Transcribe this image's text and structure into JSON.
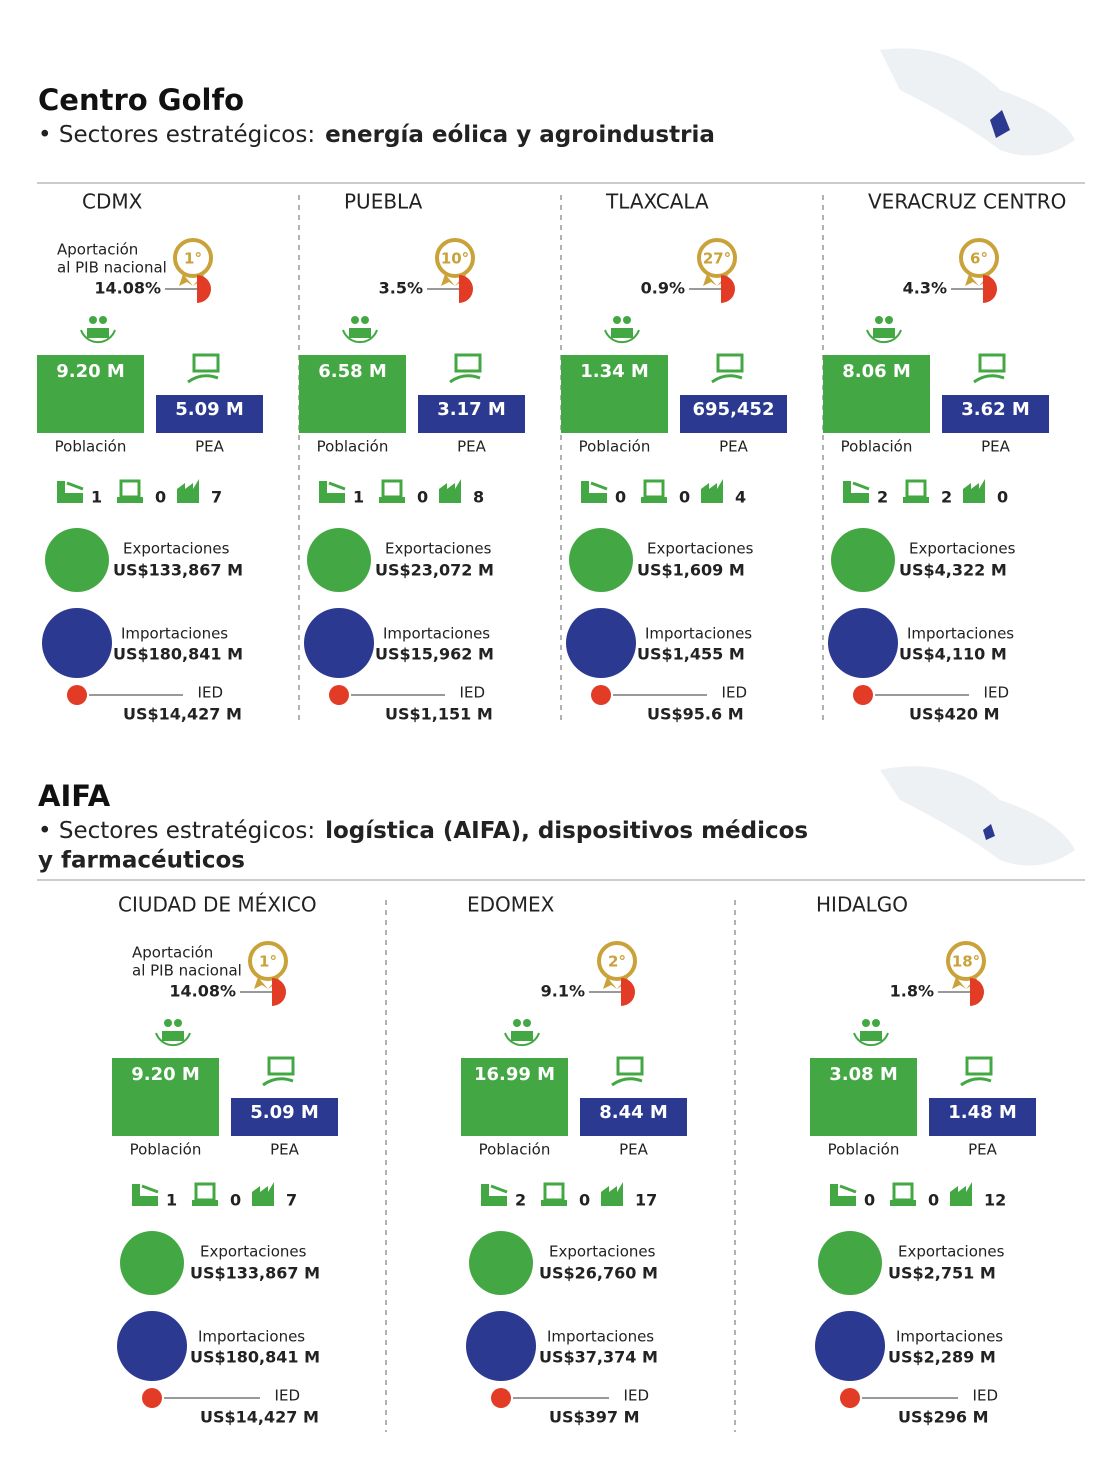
{
  "labels": {
    "pib": [
      "Aportación",
      "al PIB nacional"
    ],
    "poblacion": "Población",
    "pea": "PEA",
    "exportaciones": "Exportaciones",
    "importaciones": "Importaciones",
    "ied": "IED"
  },
  "sections": [
    {
      "title": "Centro Golfo",
      "subtitle_prefix": "• Sectores estratégicos:",
      "subtitle_bold": [
        "energía eólica y agroindustria"
      ],
      "states": [
        {
          "name": "CDMX",
          "rank": "1°",
          "pib": "14.08%",
          "poblacion": "9.20 M",
          "pea": "5.09 M",
          "icons": [
            "1",
            "0",
            "7"
          ],
          "exports": "US$133,867 M",
          "imports": "US$180,841 M",
          "ied": "US$14,427 M"
        },
        {
          "name": "PUEBLA",
          "rank": "10°",
          "pib": "3.5%",
          "poblacion": "6.58 M",
          "pea": "3.17 M",
          "icons": [
            "1",
            "0",
            "8"
          ],
          "exports": "US$23,072 M",
          "imports": "US$15,962 M",
          "ied": "US$1,151 M"
        },
        {
          "name": "TLAXCALA",
          "rank": "27°",
          "pib": "0.9%",
          "poblacion": "1.34 M",
          "pea": "695,452",
          "icons": [
            "0",
            "0",
            "4"
          ],
          "exports": "US$1,609 M",
          "imports": "US$1,455 M",
          "ied": "US$95.6 M"
        },
        {
          "name": "VERACRUZ CENTRO",
          "rank": "6°",
          "pib": "4.3%",
          "poblacion": "8.06 M",
          "pea": "3.62 M",
          "icons": [
            "2",
            "2",
            "0"
          ],
          "exports": "US$4,322 M",
          "imports": "US$4,110 M",
          "ied": "US$420 M"
        }
      ]
    },
    {
      "title": "AIFA",
      "subtitle_prefix": "• Sectores estratégicos:",
      "subtitle_bold": [
        "logística (AIFA), dispositivos médicos",
        "y farmacéuticos"
      ],
      "states": [
        {
          "name": "CIUDAD DE MÉXICO",
          "rank": "1°",
          "pib": "14.08%",
          "poblacion": "9.20 M",
          "pea": "5.09 M",
          "icons": [
            "1",
            "0",
            "7"
          ],
          "exports": "US$133,867 M",
          "imports": "US$180,841 M",
          "ied": "US$14,427 M"
        },
        {
          "name": "EDOMEX",
          "rank": "2°",
          "pib": "9.1%",
          "poblacion": "16.99 M",
          "pea": "8.44 M",
          "icons": [
            "2",
            "0",
            "17"
          ],
          "exports": "US$26,760 M",
          "imports": "US$37,374 M",
          "ied": "US$397 M"
        },
        {
          "name": "HIDALGO",
          "rank": "18°",
          "pib": "1.8%",
          "poblacion": "3.08 M",
          "pea": "1.48 M",
          "icons": [
            "0",
            "0",
            "12"
          ],
          "exports": "US$2,751 M",
          "imports": "US$2,289 M",
          "ied": "US$296 M"
        }
      ]
    }
  ]
}
